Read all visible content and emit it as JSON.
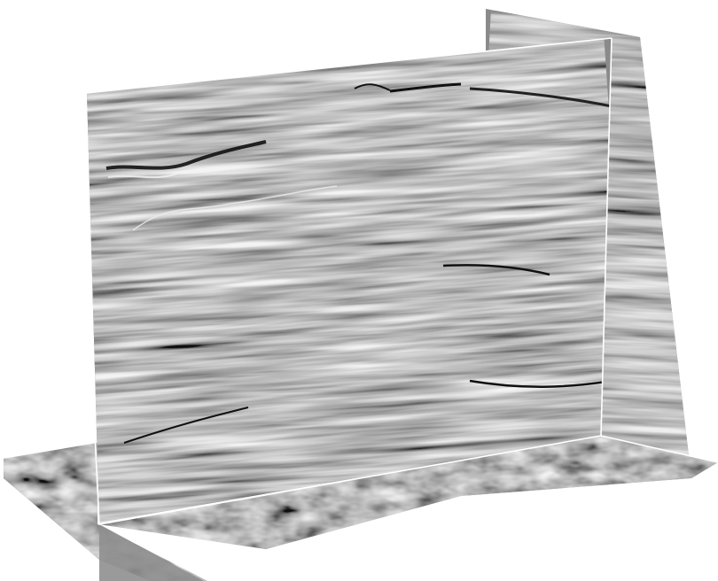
{
  "scene": {
    "kind": "3d-seismic-volume-slices",
    "background": "#ffffff",
    "seismic_gray_base": "#8a8a8a",
    "reflector_dark": "#111111",
    "reflector_light": "#e6e6e6",
    "outline_color": "#ffffff",
    "slices": [
      {
        "name": "inline-section",
        "orientation": "vertical-front"
      },
      {
        "name": "crossline-section",
        "orientation": "vertical-back"
      },
      {
        "name": "time-slice",
        "orientation": "horizontal-bottom"
      }
    ]
  }
}
